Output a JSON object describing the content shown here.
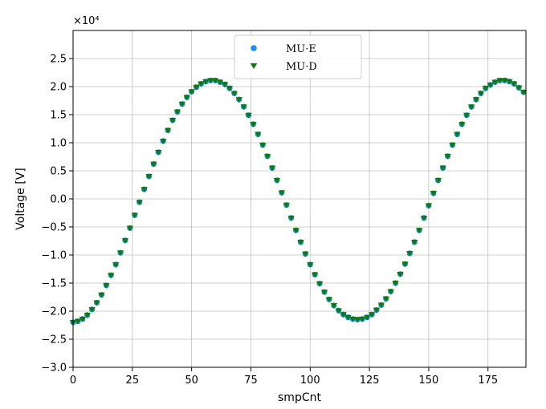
{
  "chart_data": {
    "type": "scatter",
    "title": "",
    "xlabel": "smpCnt",
    "ylabel": "Voltage [V]",
    "y_scale_label": "×10⁴",
    "xlim": [
      0,
      191
    ],
    "ylim": [
      -3.0,
      3.0
    ],
    "y_multiplier": 10000,
    "x_ticks": [
      0,
      25,
      50,
      75,
      100,
      125,
      150,
      175
    ],
    "x_tick_labels": [
      "0",
      "25",
      "50",
      "75",
      "100",
      "125",
      "150",
      "175"
    ],
    "y_ticks": [
      -3.0,
      -2.5,
      -2.0,
      -1.5,
      -1.0,
      -0.5,
      0.0,
      0.5,
      1.0,
      1.5,
      2.0,
      2.5
    ],
    "y_tick_labels": [
      "−3.0",
      "−2.5",
      "−2.0",
      "−1.5",
      "−1.0",
      "−0.5",
      "0.0",
      "0.5",
      "1.0",
      "1.5",
      "2.0",
      "2.5"
    ],
    "grid": true,
    "legend_position": "top-center",
    "series": [
      {
        "name": "MU·E",
        "marker": "circle",
        "color": "#1f8fe8",
        "x": [
          0,
          2,
          4,
          6,
          8,
          10,
          12,
          14,
          16,
          18,
          20,
          22,
          24,
          26,
          28,
          30,
          32,
          34,
          36,
          38,
          40,
          42,
          44,
          46,
          48,
          50,
          52,
          54,
          56,
          58,
          60,
          62,
          64,
          66,
          68,
          70,
          72,
          74,
          76,
          78,
          80,
          82,
          84,
          86,
          88,
          90,
          92,
          94,
          96,
          98,
          100,
          102,
          104,
          106,
          108,
          110,
          112,
          114,
          116,
          118,
          120,
          122,
          124,
          126,
          128,
          130,
          132,
          134,
          136,
          138,
          140,
          142,
          144,
          146,
          148,
          150,
          152,
          154,
          156,
          158,
          160,
          162,
          164,
          166,
          168,
          170,
          172,
          174,
          176,
          178,
          180,
          182,
          184,
          186,
          188,
          190
        ],
        "y": [
          -2.2,
          -2.18,
          -2.14,
          -2.07,
          -1.97,
          -1.85,
          -1.71,
          -1.54,
          -1.36,
          -1.17,
          -0.96,
          -0.74,
          -0.52,
          -0.29,
          -0.06,
          0.17,
          0.4,
          0.62,
          0.83,
          1.03,
          1.22,
          1.4,
          1.55,
          1.69,
          1.81,
          1.91,
          1.99,
          2.05,
          2.09,
          2.11,
          2.11,
          2.08,
          2.04,
          1.97,
          1.88,
          1.77,
          1.64,
          1.49,
          1.33,
          1.15,
          0.96,
          0.76,
          0.55,
          0.33,
          0.11,
          -0.11,
          -0.34,
          -0.56,
          -0.77,
          -0.98,
          -1.17,
          -1.35,
          -1.51,
          -1.66,
          -1.79,
          -1.9,
          -1.99,
          -2.06,
          -2.11,
          -2.14,
          -2.15,
          -2.14,
          -2.11,
          -2.06,
          -1.98,
          -1.89,
          -1.78,
          -1.65,
          -1.5,
          -1.34,
          -1.16,
          -0.97,
          -0.77,
          -0.56,
          -0.34,
          -0.12,
          0.1,
          0.33,
          0.55,
          0.76,
          0.96,
          1.15,
          1.33,
          1.49,
          1.64,
          1.77,
          1.88,
          1.97,
          2.03,
          2.08,
          2.11,
          2.11,
          2.09,
          2.05,
          1.98,
          1.9
        ]
      },
      {
        "name": "MU·D",
        "marker": "triangle-down",
        "color": "#0f7a0f",
        "x": [
          0,
          2,
          4,
          6,
          8,
          10,
          12,
          14,
          16,
          18,
          20,
          22,
          24,
          26,
          28,
          30,
          32,
          34,
          36,
          38,
          40,
          42,
          44,
          46,
          48,
          50,
          52,
          54,
          56,
          58,
          60,
          62,
          64,
          66,
          68,
          70,
          72,
          74,
          76,
          78,
          80,
          82,
          84,
          86,
          88,
          90,
          92,
          94,
          96,
          98,
          100,
          102,
          104,
          106,
          108,
          110,
          112,
          114,
          116,
          118,
          120,
          122,
          124,
          126,
          128,
          130,
          132,
          134,
          136,
          138,
          140,
          142,
          144,
          146,
          148,
          150,
          152,
          154,
          156,
          158,
          160,
          162,
          164,
          166,
          168,
          170,
          172,
          174,
          176,
          178,
          180,
          182,
          184,
          186,
          188,
          190
        ],
        "y": [
          -2.2,
          -2.18,
          -2.14,
          -2.07,
          -1.97,
          -1.85,
          -1.71,
          -1.54,
          -1.36,
          -1.17,
          -0.96,
          -0.74,
          -0.52,
          -0.29,
          -0.06,
          0.17,
          0.4,
          0.62,
          0.83,
          1.03,
          1.22,
          1.4,
          1.55,
          1.69,
          1.81,
          1.91,
          1.99,
          2.05,
          2.09,
          2.11,
          2.11,
          2.08,
          2.04,
          1.97,
          1.88,
          1.77,
          1.64,
          1.49,
          1.33,
          1.15,
          0.96,
          0.76,
          0.55,
          0.33,
          0.11,
          -0.11,
          -0.34,
          -0.56,
          -0.77,
          -0.98,
          -1.17,
          -1.35,
          -1.51,
          -1.66,
          -1.79,
          -1.9,
          -1.99,
          -2.06,
          -2.11,
          -2.14,
          -2.15,
          -2.14,
          -2.11,
          -2.06,
          -1.98,
          -1.89,
          -1.78,
          -1.65,
          -1.5,
          -1.34,
          -1.16,
          -0.97,
          -0.77,
          -0.56,
          -0.34,
          -0.12,
          0.1,
          0.33,
          0.55,
          0.76,
          0.96,
          1.15,
          1.33,
          1.49,
          1.64,
          1.77,
          1.88,
          1.97,
          2.03,
          2.08,
          2.11,
          2.11,
          2.09,
          2.05,
          1.98,
          1.9
        ]
      }
    ]
  }
}
